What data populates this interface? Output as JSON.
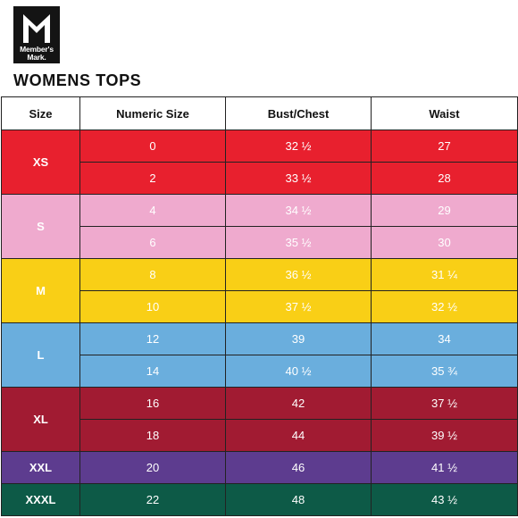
{
  "brand": {
    "logo_letter": "M",
    "line1": "Member's",
    "line2": "Mark."
  },
  "title": "WOMENS TOPS",
  "headers": [
    "Size",
    "Numeric Size",
    "Bust/Chest",
    "Waist"
  ],
  "groups": [
    {
      "size": "XS",
      "color": "#e8202e",
      "text_tone": "dark",
      "rows": [
        {
          "numeric": "0",
          "bust": "32 ½",
          "waist": "27"
        },
        {
          "numeric": "2",
          "bust": "33 ½",
          "waist": "28"
        }
      ]
    },
    {
      "size": "S",
      "color": "#efaace",
      "text_tone": "light",
      "rows": [
        {
          "numeric": "4",
          "bust": "34 ½",
          "waist": "29"
        },
        {
          "numeric": "6",
          "bust": "35 ½",
          "waist": "30"
        }
      ]
    },
    {
      "size": "M",
      "color": "#f9cf16",
      "text_tone": "light",
      "rows": [
        {
          "numeric": "8",
          "bust": "36 ½",
          "waist": "31 ¼"
        },
        {
          "numeric": "10",
          "bust": "37 ½",
          "waist": "32 ½"
        }
      ]
    },
    {
      "size": "L",
      "color": "#6aaedd",
      "text_tone": "light",
      "rows": [
        {
          "numeric": "12",
          "bust": "39",
          "waist": "34"
        },
        {
          "numeric": "14",
          "bust": "40 ½",
          "waist": "35 ¾"
        }
      ]
    },
    {
      "size": "XL",
      "color": "#a11b32",
      "text_tone": "dark",
      "rows": [
        {
          "numeric": "16",
          "bust": "42",
          "waist": "37 ½"
        },
        {
          "numeric": "18",
          "bust": "44",
          "waist": "39 ½"
        }
      ]
    },
    {
      "size": "XXL",
      "color": "#5d3c8f",
      "text_tone": "dark",
      "rows": [
        {
          "numeric": "20",
          "bust": "46",
          "waist": "41 ½"
        }
      ]
    },
    {
      "size": "XXXL",
      "color": "#0d5a47",
      "text_tone": "dark",
      "rows": [
        {
          "numeric": "22",
          "bust": "48",
          "waist": "43 ½"
        }
      ]
    }
  ]
}
